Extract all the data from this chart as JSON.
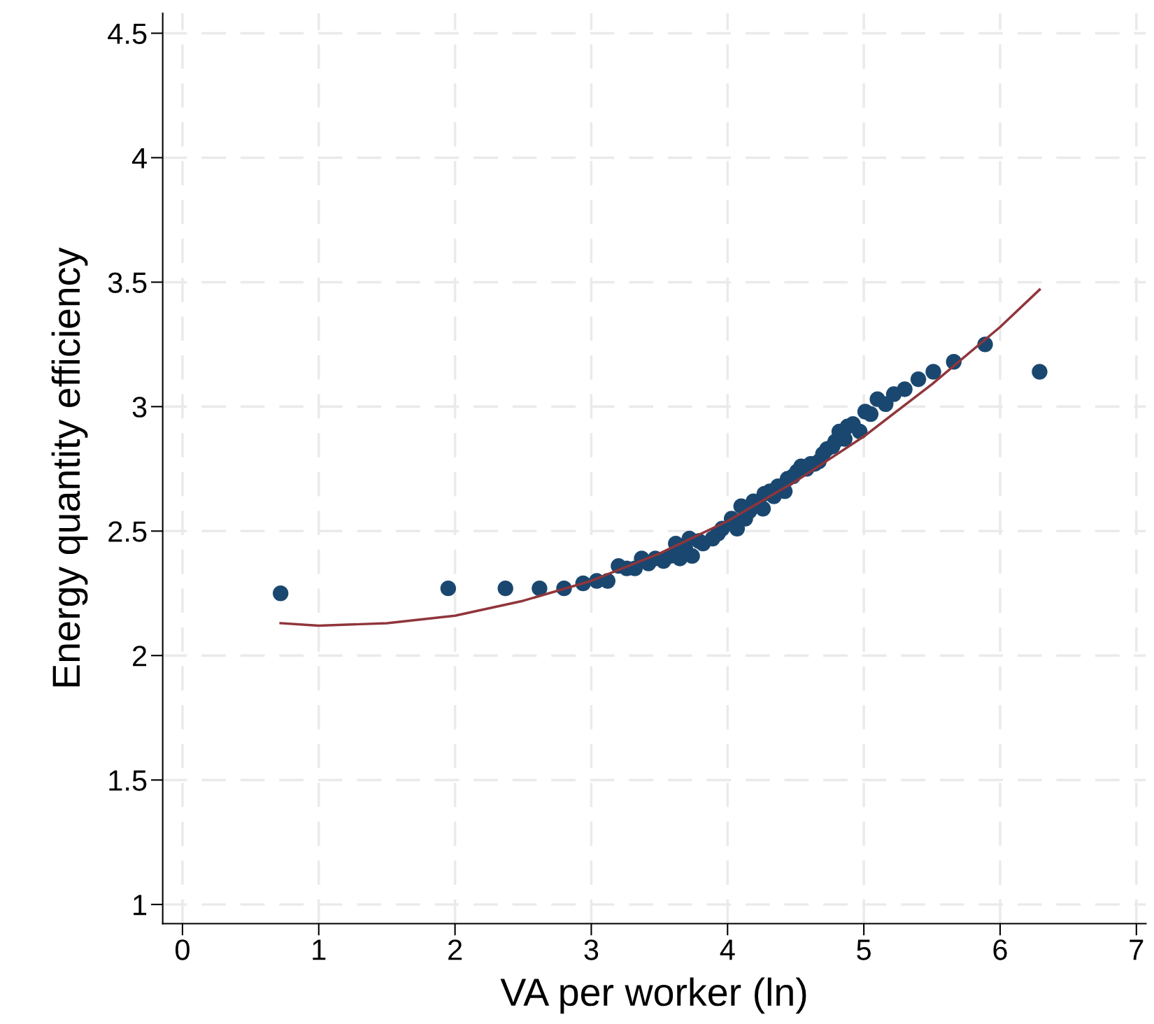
{
  "chart_data": {
    "type": "scatter",
    "xlabel": "VA per worker (ln)",
    "ylabel": "Energy quantity efficiency",
    "xlim": [
      -0.145,
      7.07
    ],
    "ylim": [
      0.923,
      4.58
    ],
    "xticks": [
      0,
      1,
      2,
      3,
      4,
      5,
      6,
      7
    ],
    "yticks": [
      1,
      1.5,
      2,
      2.5,
      3,
      3.5,
      4,
      4.5
    ],
    "grid": true,
    "legend": false,
    "series": [
      {
        "color": "#1a476f",
        "marker": "circle",
        "x": [
          0.72,
          1.95,
          2.37,
          2.62,
          2.8,
          2.94,
          3.04,
          3.12,
          3.2,
          3.26,
          3.32,
          3.37,
          3.42,
          3.47,
          3.53,
          3.58,
          3.62,
          3.65,
          3.69,
          3.72,
          3.74,
          3.79,
          3.82,
          3.89,
          3.93,
          3.96,
          4.03,
          4.07,
          4.1,
          4.13,
          4.16,
          4.19,
          4.26,
          4.27,
          4.31,
          4.34,
          4.37,
          4.42,
          4.44,
          4.48,
          4.51,
          4.54,
          4.58,
          4.61,
          4.64,
          4.67,
          4.7,
          4.73,
          4.77,
          4.79,
          4.82,
          4.86,
          4.88,
          4.92,
          4.97,
          5.01,
          5.05,
          5.1,
          5.16,
          5.22,
          5.3,
          5.4,
          5.51,
          5.66,
          5.89,
          6.29
        ],
        "values": [
          2.25,
          2.27,
          2.27,
          2.27,
          2.27,
          2.29,
          2.3,
          2.3,
          2.36,
          2.35,
          2.35,
          2.39,
          2.37,
          2.39,
          2.38,
          2.4,
          2.45,
          2.39,
          2.43,
          2.47,
          2.4,
          2.46,
          2.45,
          2.47,
          2.49,
          2.51,
          2.55,
          2.51,
          2.6,
          2.55,
          2.58,
          2.62,
          2.59,
          2.65,
          2.66,
          2.64,
          2.68,
          2.66,
          2.71,
          2.72,
          2.74,
          2.76,
          2.75,
          2.77,
          2.77,
          2.78,
          2.81,
          2.83,
          2.84,
          2.86,
          2.9,
          2.87,
          2.92,
          2.93,
          2.9,
          2.98,
          2.97,
          3.03,
          3.01,
          3.05,
          3.07,
          3.11,
          3.14,
          3.18,
          3.25,
          3.14
        ]
      },
      {
        "type": "line",
        "color": "#90353b",
        "line_style": "solid",
        "x": [
          0.72,
          1,
          1.5,
          2,
          2.5,
          3,
          3.5,
          4,
          4.5,
          5,
          5.5,
          6,
          6.29
        ],
        "values": [
          2.13,
          2.12,
          2.13,
          2.16,
          2.22,
          2.3,
          2.41,
          2.54,
          2.7,
          2.88,
          3.09,
          3.32,
          3.47
        ]
      }
    ]
  }
}
